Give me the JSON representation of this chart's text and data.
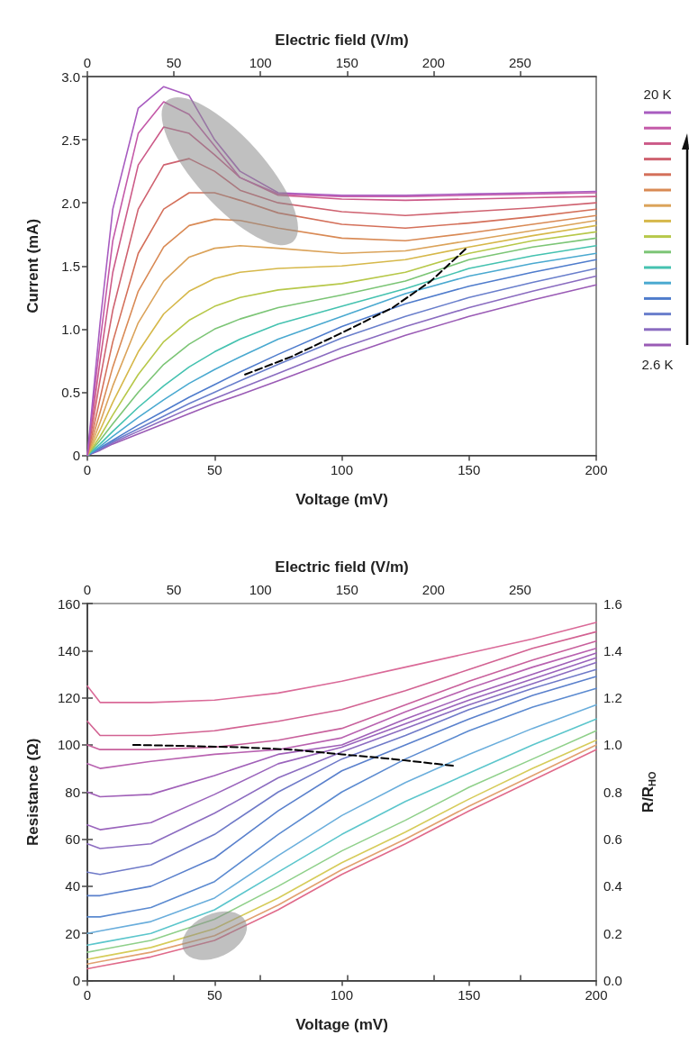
{
  "chart_data": [
    {
      "type": "line",
      "xlabel": "Voltage (mV)",
      "ylabel": "Current (mA)",
      "x2label": "Electric field (V/m)",
      "x": [
        0,
        5,
        10,
        20,
        30,
        40,
        50,
        60,
        75,
        100,
        125,
        150,
        175,
        200
      ],
      "xlim": [
        0,
        200
      ],
      "xticks": [
        0,
        50,
        100,
        150,
        200
      ],
      "x2lim": [
        0,
        294
      ],
      "x2ticks": [
        0,
        50,
        100,
        150,
        200,
        250
      ],
      "ylim": [
        0,
        3
      ],
      "yticks": [
        0,
        {
          "value": 0.5,
          "label": "0.5"
        },
        {
          "value": 1,
          "label": "1.0"
        },
        {
          "value": 1.5,
          "label": "1.5"
        },
        {
          "value": 2,
          "label": "2.0"
        },
        {
          "value": 2.5,
          "label": "2.5"
        },
        {
          "value": 3,
          "label": "3.0"
        }
      ],
      "grid": false,
      "marker": "none",
      "line_style": "solid",
      "annotations": [
        "20 K",
        "2.6 K"
      ],
      "series": [
        {
          "color": "#9a5bb5",
          "values": [
            0,
            0.04,
            0.09,
            0.17,
            0.25,
            0.33,
            0.41,
            0.48,
            0.59,
            0.78,
            0.95,
            1.1,
            1.23,
            1.35
          ]
        },
        {
          "color": "#8a6cc0",
          "values": [
            0,
            0.045,
            0.1,
            0.19,
            0.28,
            0.37,
            0.45,
            0.53,
            0.65,
            0.85,
            1.02,
            1.17,
            1.3,
            1.42
          ]
        },
        {
          "color": "#6a7fcc",
          "values": [
            0,
            0.05,
            0.11,
            0.21,
            0.31,
            0.41,
            0.5,
            0.59,
            0.72,
            0.93,
            1.1,
            1.25,
            1.37,
            1.48
          ]
        },
        {
          "color": "#4f7ccc",
          "values": [
            0,
            0.06,
            0.12,
            0.24,
            0.35,
            0.46,
            0.56,
            0.66,
            0.8,
            1.02,
            1.2,
            1.34,
            1.45,
            1.55
          ]
        },
        {
          "color": "#4aa9d0",
          "values": [
            0,
            0.07,
            0.15,
            0.3,
            0.44,
            0.57,
            0.68,
            0.78,
            0.92,
            1.1,
            1.28,
            1.42,
            1.52,
            1.6
          ]
        },
        {
          "color": "#45c2b0",
          "values": [
            0,
            0.09,
            0.19,
            0.38,
            0.55,
            0.7,
            0.82,
            0.92,
            1.04,
            1.18,
            1.32,
            1.48,
            1.58,
            1.66
          ]
        },
        {
          "color": "#7cc576",
          "values": [
            0,
            0.12,
            0.25,
            0.5,
            0.72,
            0.88,
            1.0,
            1.08,
            1.17,
            1.27,
            1.38,
            1.55,
            1.65,
            1.72
          ]
        },
        {
          "color": "#b7c84a",
          "values": [
            0,
            0.15,
            0.32,
            0.64,
            0.9,
            1.07,
            1.18,
            1.25,
            1.31,
            1.36,
            1.45,
            1.6,
            1.7,
            1.77
          ]
        },
        {
          "color": "#d6b84a",
          "values": [
            0,
            0.2,
            0.42,
            0.82,
            1.12,
            1.3,
            1.4,
            1.45,
            1.48,
            1.5,
            1.55,
            1.65,
            1.74,
            1.82
          ]
        },
        {
          "color": "#dba35a",
          "values": [
            0,
            0.26,
            0.55,
            1.05,
            1.38,
            1.57,
            1.64,
            1.66,
            1.64,
            1.6,
            1.62,
            1.7,
            1.78,
            1.86
          ]
        },
        {
          "color": "#d98a55",
          "values": [
            0,
            0.34,
            0.7,
            1.3,
            1.65,
            1.82,
            1.87,
            1.86,
            1.8,
            1.72,
            1.7,
            1.76,
            1.83,
            1.9
          ]
        },
        {
          "color": "#d4705a",
          "values": [
            0,
            0.45,
            0.9,
            1.6,
            1.95,
            2.08,
            2.08,
            2.02,
            1.92,
            1.83,
            1.8,
            1.84,
            1.89,
            1.95
          ]
        },
        {
          "color": "#cf6270",
          "values": [
            0,
            0.6,
            1.15,
            1.95,
            2.3,
            2.35,
            2.25,
            2.1,
            2.0,
            1.93,
            1.9,
            1.93,
            1.96,
            2.0
          ]
        },
        {
          "color": "#cc5a88",
          "values": [
            0,
            0.75,
            1.45,
            2.3,
            2.6,
            2.55,
            2.38,
            2.2,
            2.06,
            2.03,
            2.02,
            2.03,
            2.04,
            2.05
          ]
        },
        {
          "color": "#c459a8",
          "values": [
            0,
            0.9,
            1.7,
            2.55,
            2.8,
            2.7,
            2.45,
            2.2,
            2.07,
            2.05,
            2.05,
            2.06,
            2.07,
            2.08
          ]
        },
        {
          "color": "#a85cc0",
          "values": [
            0,
            1.05,
            1.95,
            2.75,
            2.92,
            2.85,
            2.5,
            2.25,
            2.08,
            2.06,
            2.06,
            2.07,
            2.08,
            2.09
          ]
        },
        {
          "type": "line",
          "line_style": "dashed",
          "color": "#000000",
          "x": [
            62,
            80,
            100,
            120,
            135,
            149
          ],
          "values": [
            0.64,
            0.78,
            0.97,
            1.17,
            1.38,
            1.64
          ]
        }
      ]
    },
    {
      "type": "line",
      "xlabel": "Voltage (mV)",
      "ylabel": "Resistance (Ω)",
      "y2label": "R/R$_{HO}$",
      "x2label": "Electric field (V/m)",
      "x": [
        0,
        5,
        25,
        50,
        75,
        100,
        125,
        150,
        175,
        200
      ],
      "xlim": [
        0,
        200
      ],
      "xticks": [
        0,
        50,
        100,
        150,
        200
      ],
      "x2lim": [
        0,
        294
      ],
      "x2ticks": [
        0,
        50,
        100,
        150,
        200,
        250
      ],
      "ylim": [
        0,
        160
      ],
      "yticks": [
        0,
        20,
        40,
        60,
        80,
        100,
        120,
        140,
        160
      ],
      "y2lim": [
        0,
        1.6
      ],
      "y2ticks": [
        {
          "value": 0,
          "label": "0.0"
        },
        {
          "value": 0.2,
          "label": "0.2"
        },
        {
          "value": 0.4,
          "label": "0.4"
        },
        {
          "value": 0.6,
          "label": "0.6"
        },
        {
          "value": 0.8,
          "label": "0.8"
        },
        {
          "value": 1,
          "label": "1.0"
        },
        {
          "value": 1.2,
          "label": "1.2"
        },
        {
          "value": 1.4,
          "label": "1.4"
        },
        {
          "value": 1.6,
          "label": "1.6"
        }
      ],
      "grid": false,
      "marker": "none",
      "line_style": "solid",
      "series": [
        {
          "color": "#e06a8a",
          "values": [
            5,
            6,
            10,
            17,
            30,
            45,
            58,
            72,
            85,
            98
          ]
        },
        {
          "color": "#e2a070",
          "values": [
            7,
            8,
            12,
            19,
            32,
            47,
            60,
            74,
            87,
            100
          ]
        },
        {
          "color": "#d6cc5a",
          "values": [
            9,
            10,
            14,
            22,
            35,
            50,
            63,
            77,
            90,
            102
          ]
        },
        {
          "color": "#8fd08a",
          "values": [
            12,
            13,
            17,
            26,
            40,
            55,
            68,
            82,
            94,
            106
          ]
        },
        {
          "color": "#5cc6cc",
          "values": [
            15,
            16,
            20,
            30,
            46,
            62,
            76,
            88,
            100,
            111
          ]
        },
        {
          "color": "#6aaedc",
          "values": [
            20,
            21,
            25,
            35,
            53,
            70,
            84,
            96,
            107,
            117
          ]
        },
        {
          "color": "#5b8ad0",
          "values": [
            27,
            27,
            31,
            42,
            62,
            80,
            94,
            106,
            116,
            124
          ]
        },
        {
          "color": "#5a80cc",
          "values": [
            36,
            36,
            40,
            52,
            72,
            89,
            100,
            111,
            121,
            129
          ]
        },
        {
          "color": "#6f7ac8",
          "values": [
            46,
            45,
            49,
            62,
            80,
            94,
            104,
            115,
            124,
            132
          ]
        },
        {
          "color": "#8c6cc0",
          "values": [
            58,
            56,
            58,
            71,
            86,
            97,
            107,
            117,
            126,
            135
          ]
        },
        {
          "color": "#9a64bc",
          "values": [
            66,
            64,
            67,
            79,
            92,
            99,
            109,
            119,
            128,
            137
          ]
        },
        {
          "color": "#a060b8",
          "values": [
            80,
            78,
            79,
            87,
            96,
            100,
            111,
            121,
            130,
            139
          ]
        },
        {
          "color": "#b862b0",
          "values": [
            92,
            90,
            93,
            96,
            98,
            103,
            114,
            124,
            133,
            141
          ]
        },
        {
          "color": "#c8609c",
          "values": [
            100,
            98,
            98,
            99,
            102,
            107,
            117,
            127,
            136,
            144
          ]
        },
        {
          "color": "#d26292",
          "values": [
            110,
            104,
            104,
            106,
            110,
            115,
            123,
            132,
            141,
            148
          ]
        },
        {
          "color": "#da6a98",
          "values": [
            125,
            118,
            118,
            119,
            122,
            127,
            133,
            139,
            145,
            152
          ]
        },
        {
          "type": "line",
          "line_style": "dashed",
          "color": "#000000",
          "x": [
            18,
            40,
            60,
            80,
            100,
            120,
            145
          ],
          "values": [
            100,
            99.5,
            99,
            98,
            96,
            94,
            91
          ]
        }
      ]
    }
  ]
}
